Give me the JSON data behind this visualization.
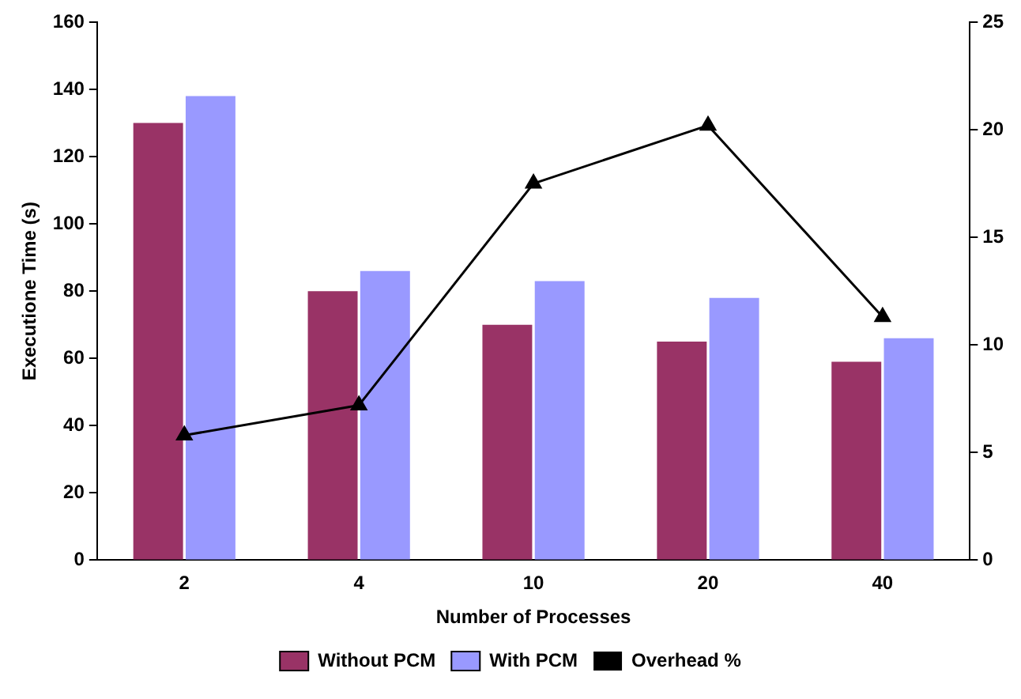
{
  "chart_data": {
    "type": "bar",
    "xlabel": "Number of Processes",
    "ylabel": "Executione Time (s)",
    "categories": [
      "2",
      "4",
      "10",
      "20",
      "40"
    ],
    "ylim": [
      0,
      160
    ],
    "yticks": [
      0,
      20,
      40,
      60,
      80,
      100,
      120,
      140,
      160
    ],
    "y2lim": [
      0,
      25
    ],
    "y2ticks": [
      0,
      5,
      10,
      15,
      20,
      25
    ],
    "grid": false,
    "legend": "bottom",
    "marker": "triangle",
    "series": [
      {
        "name": "Without PCM",
        "color": "#993366",
        "values": [
          130,
          80,
          70,
          65,
          59
        ]
      },
      {
        "name": "With PCM",
        "color": "#9999ff",
        "values": [
          138,
          86,
          83,
          78,
          66
        ]
      },
      {
        "name": "Overhead %",
        "type": "line",
        "axis": "y2",
        "color": "#000000",
        "values": [
          5.8,
          7.2,
          17.5,
          20.2,
          11.3
        ]
      }
    ]
  }
}
